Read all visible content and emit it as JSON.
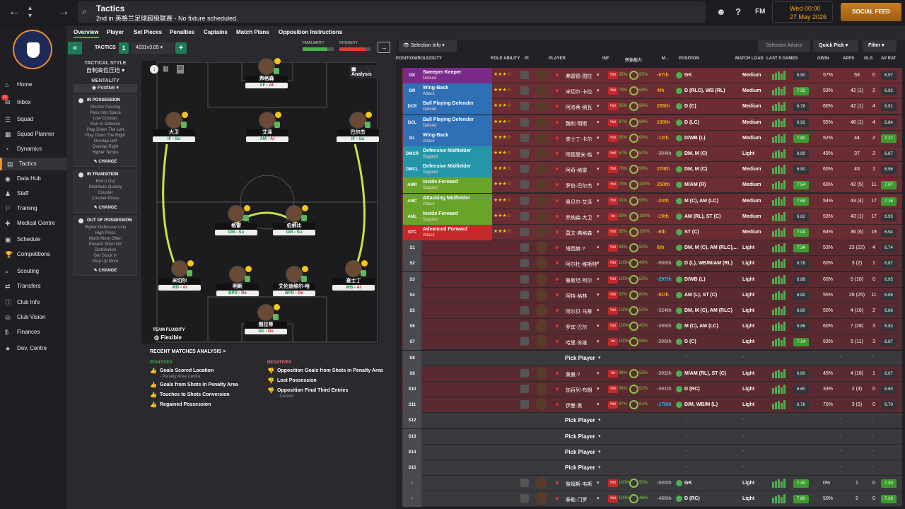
{
  "topbar": {
    "title": "Tactics",
    "subtitle": "2nd in 英格兰足球超级联赛 - No fixture scheduled.",
    "fm_label": "FM",
    "date_line1": "Wed 00:00",
    "date_line2": "27 May 2026",
    "social_feed": "SOCIAL FEED"
  },
  "sidebar": {
    "items": [
      {
        "label": "Home",
        "icon": "⌂"
      },
      {
        "label": "Inbox",
        "icon": "✉"
      },
      {
        "label": "Squad",
        "icon": "☰"
      },
      {
        "label": "Squad Planner",
        "icon": "▦"
      },
      {
        "label": "Dynamics",
        "icon": "◔"
      },
      {
        "label": "Tactics",
        "icon": "▤"
      },
      {
        "label": "Data Hub",
        "icon": "◉"
      },
      {
        "label": "Staff",
        "icon": "♟"
      },
      {
        "label": "Training",
        "icon": "⚐"
      },
      {
        "label": "Medical Centre",
        "icon": "✚"
      },
      {
        "label": "Schedule",
        "icon": "▣"
      },
      {
        "label": "Competitions",
        "icon": "🏆"
      },
      {
        "label": "Scouting",
        "icon": "⌕"
      },
      {
        "label": "Transfers",
        "icon": "⇄"
      },
      {
        "label": "Club Info",
        "icon": "ⓘ"
      },
      {
        "label": "Club Vision",
        "icon": "◎"
      },
      {
        "label": "Finances",
        "icon": "$"
      },
      {
        "label": "Dev. Centre",
        "icon": "★"
      }
    ],
    "inbox_badge": "10"
  },
  "tabs": [
    "Overview",
    "Player",
    "Set Pieces",
    "Penalties",
    "Captains",
    "Match Plans",
    "Opposition Instructions"
  ],
  "tactic": {
    "label": "TACTICS",
    "slot": "1",
    "name": "4231v3.05",
    "familiarity": "FAMILIARITY",
    "intensity": "INTENSITY",
    "style_label": "TACTICAL STYLE",
    "style_value": "自制高位压迫",
    "mentality_label": "MENTALITY",
    "mentality_value": "Positive",
    "analysis": "Analysis",
    "fluidity_label": "TEAM FLUIDITY",
    "fluidity_value": "Flexible"
  },
  "in_possession": {
    "title": "IN POSSESSION",
    "items": [
      "Shorter Passing",
      "Pass Into Space",
      "Low Crosses",
      "Run At Defence",
      "Play Down The Left",
      "Play Down The Right",
      "Overlap Left",
      "Overlap Right",
      "Higher Tempo"
    ],
    "change": "CHANGE"
  },
  "in_transition": {
    "title": "IN TRANSITION",
    "items": [
      "Roll It Out",
      "Distribute Quickly",
      "Counter",
      "Counter-Press"
    ],
    "change": "CHANGE"
  },
  "out_possession": {
    "title": "OUT OF POSSESSION",
    "items": [
      "Higher Defensive Line",
      "High Press",
      "Much More Often",
      "Prevent Short GK",
      "Distribution",
      "Get Stuck In",
      "Step Up More"
    ],
    "change": "CHANGE"
  },
  "pitch_players": [
    {
      "name": "弗格森",
      "role": "AF",
      "duty": "At"
    },
    {
      "name": "大卫",
      "role": "IF",
      "duty": "Su"
    },
    {
      "name": "艾泽",
      "role": "AM",
      "duty": "At"
    },
    {
      "name": "巴尔杰",
      "role": "IF",
      "duty": "Su"
    },
    {
      "name": "格雷",
      "role": "DM",
      "duty": "Su"
    },
    {
      "name": "伯纳比",
      "role": "DM",
      "duty": "Su"
    },
    {
      "name": "米切尔",
      "role": "WB",
      "duty": "At"
    },
    {
      "name": "明斯",
      "role": "BPD",
      "duty": "De"
    },
    {
      "name": "艾伦迪维尔-哈",
      "role": "BPD",
      "duty": "De"
    },
    {
      "name": "查士丁",
      "role": "WB",
      "duty": "At"
    },
    {
      "name": "图拉蒂",
      "role": "SK",
      "duty": "De"
    }
  ],
  "recent": {
    "title": "RECENT MATCHES ANALYSIS >",
    "positives_label": "POSITIVES",
    "positives": [
      {
        "text": "Goals Scored Location",
        "sub": "- Penalty Area Centre"
      },
      {
        "text": "Goals from Shots in Penalty Area",
        "sub": ""
      },
      {
        "text": "Touches to Shots Conversion",
        "sub": ""
      },
      {
        "text": "Regained Possession",
        "sub": ""
      }
    ],
    "negatives_label": "NEGATIVES",
    "negatives": [
      {
        "text": "Opposition Goals from Shots in Penalty Area",
        "sub": ""
      },
      {
        "text": "Lost Possession",
        "sub": ""
      },
      {
        "text": "Opposition Final Third Entries",
        "sub": "- Central"
      }
    ]
  },
  "right": {
    "selection_info": "Selection Info",
    "selection_advice": "Selection Advice",
    "quick_pick": "Quick Pick",
    "filter": "Filter",
    "columns": [
      "POSITION/ROLE/DUTY",
      "ROLE ABILITY",
      "PI",
      "PLAYER",
      "INF",
      "转体能力",
      "M...",
      "POSITION",
      "MATCH LOAD",
      "LAST 5 GAMES",
      "GWIN",
      "APPS",
      "GLS",
      "AV RAT"
    ],
    "pick_player": "Pick Player",
    "rows": [
      {
        "pos": "GK",
        "role": "Sweeper Keeper",
        "duty": "Defend",
        "color": "#7a2b8a",
        "name": "弗雷德·图拉",
        "inf": "Hol",
        "c1": "95%",
        "c2": "95%",
        "val": "-67th",
        "vcol": "#f5a623",
        "position": "GK",
        "load": "Medium",
        "rat": "6.90",
        "gwin": "57%",
        "apps": "53",
        "gls": "0",
        "av": "6.97",
        "avg": false,
        "kind": "sel"
      },
      {
        "pos": "DR",
        "role": "Wing-Back",
        "duty": "Attack",
        "color": "#2e6fb5",
        "name": "米切尔·卡拉",
        "inf": "Hol",
        "c1": "79%",
        "c2": "99%",
        "val": "4th",
        "vcol": "#f5a623",
        "position": "D (RLC), WB (RL)",
        "load": "Medium",
        "rat": "7.32",
        "gwin": "53%",
        "apps": "42 (1)",
        "gls": "2",
        "av": "6.92",
        "avg": false,
        "kind": "sel"
      },
      {
        "pos": "DCR",
        "role": "Ball Playing Defender",
        "duty": "Defend",
        "color": "#2e6fb5",
        "name": "阿洛蒂·纳瓦",
        "inf": "Hol",
        "c1": "85%",
        "c2": "99%",
        "val": "285th",
        "vcol": "#f5a623",
        "position": "D (C)",
        "load": "Medium",
        "rat": "6.78",
        "gwin": "60%",
        "apps": "42 (1)",
        "gls": "4",
        "av": "6.91",
        "avg": false,
        "kind": "sel"
      },
      {
        "pos": "DCL",
        "role": "Ball Playing Defender",
        "duty": "Defend",
        "color": "#2e6fb5",
        "name": "魏利·明斯",
        "inf": "Hol",
        "c1": "87%",
        "c2": "99%",
        "val": "190th",
        "vcol": "#f5a623",
        "position": "D (LC)",
        "load": "Medium",
        "rat": "6.92",
        "gwin": "55%",
        "apps": "46 (1)",
        "gls": "4",
        "av": "6.84",
        "avg": false,
        "kind": "sel"
      },
      {
        "pos": "DL",
        "role": "Wing-Back",
        "duty": "Attack",
        "color": "#2e6fb5",
        "name": "查士丁·卡尔",
        "inf": "Hol",
        "c1": "85%",
        "c2": "99%",
        "val": "-12th",
        "vcol": "#f5a623",
        "position": "D/WB (L)",
        "load": "Medium",
        "rat": "7.80",
        "gwin": "52%",
        "apps": "44",
        "gls": "2",
        "av": "7.17",
        "avg": true,
        "kind": "sel"
      },
      {
        "pos": "DMCR",
        "role": "Defensive Midfielder",
        "duty": "Support",
        "color": "#2596a8",
        "name": "阿德里安·格",
        "inf": "Hol",
        "c1": "67%",
        "c2": "81%",
        "val": "-304th",
        "vcol": "#aaa",
        "position": "DM, M (C)",
        "load": "Light",
        "rat": "6.90",
        "gwin": "49%",
        "apps": "37",
        "gls": "2",
        "av": "6.87",
        "avg": false,
        "kind": "sel"
      },
      {
        "pos": "DMCL",
        "role": "Defensive Midfielder",
        "duty": "Support",
        "color": "#2596a8",
        "name": "阿奇·格雷",
        "inf": "Hol",
        "c1": "78%",
        "c2": "99%",
        "val": "274th",
        "vcol": "#f5a623",
        "position": "DM, M (C)",
        "load": "Medium",
        "rat": "6.90",
        "gwin": "60%",
        "apps": "43",
        "gls": "1",
        "av": "6.96",
        "avg": false,
        "kind": "sel"
      },
      {
        "pos": "AMR",
        "role": "Inside Forward",
        "duty": "Support",
        "color": "#6aa32a",
        "name": "罗伯·巴尔杰",
        "inf": "Hol",
        "c1": "73%",
        "c2": "100%",
        "val": "250th",
        "vcol": "#f5a623",
        "position": "M/AM (R)",
        "load": "Medium",
        "rat": "7.54",
        "gwin": "60%",
        "apps": "42 (5)",
        "gls": "11",
        "av": "7.07",
        "avg": true,
        "kind": "sel"
      },
      {
        "pos": "AMC",
        "role": "Attacking Midfielder",
        "duty": "Attack",
        "color": "#6aa32a",
        "name": "奥贝尔·艾泽",
        "inf": "Hol",
        "c1": "91%",
        "c2": "99%",
        "val": "-24th",
        "vcol": "#f5a623",
        "position": "M (C), AM (LC)",
        "load": "Medium",
        "rat": "7.68",
        "gwin": "54%",
        "apps": "43 (4)",
        "gls": "17",
        "av": "7.16",
        "avg": true,
        "kind": "sel"
      },
      {
        "pos": "AML",
        "role": "Inside Forward",
        "duty": "Support",
        "color": "#6aa32a",
        "name": "乔纳森·大卫",
        "inf": "Int",
        "c1": "83%",
        "c2": "100%",
        "val": "-19th",
        "vcol": "#f5a623",
        "position": "AM (RL), ST (C)",
        "load": "Medium",
        "rat": "6.82",
        "gwin": "53%",
        "apps": "43 (1)",
        "gls": "17",
        "av": "6.93",
        "avg": false,
        "kind": "sel"
      },
      {
        "pos": "STC",
        "role": "Advanced Forward",
        "duty": "Attack",
        "color": "#c62828",
        "name": "莫文·弗格森",
        "inf": "Hol",
        "c1": "85%",
        "c2": "100%",
        "val": "-6th",
        "vcol": "#f5a623",
        "position": "ST (C)",
        "load": "Medium",
        "rat": "7.04",
        "gwin": "64%",
        "apps": "36 (6)",
        "gls": "19",
        "av": "6.94",
        "avg": false,
        "kind": "sel"
      },
      {
        "pos": "S1",
        "name": "塔西赫·?",
        "inf": "Hol",
        "c1": "83%",
        "c2": "90%",
        "val": "6th",
        "vcol": "#f5a623",
        "position": "DM, M (C), AM (RLC),...",
        "load": "Light",
        "rat": "7.34",
        "gwin": "53%",
        "apps": "23 (22)",
        "gls": "4",
        "av": "6.74",
        "avg": false,
        "kind": "sub"
      },
      {
        "pos": "S2",
        "name": "阿尔杜·维斯特",
        "inf": "Hol",
        "c1": "100%",
        "c2": "48%",
        "val": "-500th",
        "vcol": "#aaa",
        "position": "D (L), WB/M/AM (RL)",
        "load": "Light",
        "rat": "6.78",
        "gwin": "60%",
        "apps": "3 (2)",
        "gls": "1",
        "av": "6.87",
        "avg": false,
        "kind": "sub"
      },
      {
        "pos": "S3",
        "name": "鲁斯坦·阿尔",
        "inf": "Hol",
        "c1": "100%",
        "c2": "55%",
        "val": "-297th",
        "vcol": "#29b6f6",
        "position": "D/WB (L)",
        "load": "Light",
        "rat": "6.88",
        "gwin": "60%",
        "apps": "5 (10)",
        "gls": "0",
        "av": "6.95",
        "avg": false,
        "kind": "sub"
      },
      {
        "pos": "S4",
        "name": "阿特·格林",
        "inf": "Hol",
        "c1": "92%",
        "c2": "80%",
        "val": "-91th",
        "vcol": "#f5a623",
        "position": "AM (L), ST (C)",
        "load": "Light",
        "rat": "6.82",
        "gwin": "55%",
        "apps": "26 (25)",
        "gls": "11",
        "av": "6.86",
        "avg": false,
        "kind": "sub"
      },
      {
        "pos": "S5",
        "name": "阿尔贝·马蒂",
        "inf": "Hol",
        "c1": "100%",
        "c2": "52%",
        "val": "-324th",
        "vcol": "#aaa",
        "position": "DM, M (C), AM (RLC)",
        "load": "Light",
        "rat": "6.80",
        "gwin": "50%",
        "apps": "4 (16)",
        "gls": "2",
        "av": "6.86",
        "avg": false,
        "kind": "sub"
      },
      {
        "pos": "S6",
        "name": "罗宾·巴尔",
        "inf": "Hol",
        "c1": "100%",
        "c2": "45%",
        "val": "-395th",
        "vcol": "#aaa",
        "position": "M (C), AM (LC)",
        "load": "Light",
        "rat": "6.86",
        "gwin": "60%",
        "apps": "7 (28)",
        "gls": "3",
        "av": "6.83",
        "avg": false,
        "kind": "sub"
      },
      {
        "pos": "S7",
        "name": "哈里·苏维",
        "inf": "Int",
        "c1": "100%",
        "c2": "56%",
        "val": "-306th",
        "vcol": "#aaa",
        "position": "D (C)",
        "load": "Light",
        "rat": "7.14",
        "gwin": "53%",
        "apps": "5 (11)",
        "gls": "3",
        "av": "6.87",
        "avg": false,
        "kind": "sub"
      },
      {
        "pos": "S8",
        "name": "",
        "kind": "empty"
      },
      {
        "pos": "S9",
        "name": "黄晨·?",
        "inf": "Int",
        "c1": "98%",
        "c2": "55%",
        "val": "-392th",
        "vcol": "#aaa",
        "position": "M/AM (RL), ST (C)",
        "load": "Light",
        "rat": "6.60",
        "gwin": "45%",
        "apps": "4 (18)",
        "gls": "1",
        "av": "6.67",
        "avg": false,
        "kind": "sub"
      },
      {
        "pos": "S10",
        "name": "加百列·布朗",
        "inf": "Hol",
        "c1": "96%",
        "c2": "52%",
        "val": "-391th",
        "vcol": "#aaa",
        "position": "D (RC)",
        "load": "Light",
        "rat": "6.60",
        "gwin": "33%",
        "apps": "2 (4)",
        "gls": "0",
        "av": "6.60",
        "avg": false,
        "kind": "sub"
      },
      {
        "pos": "S11",
        "name": "伊曼·奥",
        "inf": "Hol",
        "c1": "97%",
        "c2": "61%",
        "val": "-176th",
        "vcol": "#29b6f6",
        "position": "D/M, WB/M (L)",
        "load": "Light",
        "rat": "6.76",
        "gwin": "75%",
        "apps": "3 (5)",
        "gls": "0",
        "av": "6.70",
        "avg": false,
        "kind": "sub"
      },
      {
        "pos": "S12",
        "name": "",
        "kind": "empty"
      },
      {
        "pos": "S13",
        "name": "",
        "kind": "empty"
      },
      {
        "pos": "S14",
        "name": "",
        "kind": "empty"
      },
      {
        "pos": "S15",
        "name": "",
        "kind": "empty"
      },
      {
        "pos": "-",
        "name": "詹姆斯·韦斯",
        "inf": "Hol",
        "c1": "100%",
        "c2": "50%",
        "val": "-500th",
        "vcol": "#aaa",
        "position": "GK",
        "load": "Light",
        "rat": "7.40",
        "gwin": "0%",
        "apps": "1",
        "gls": "0",
        "av": "7.30",
        "avg": true,
        "kind": "res"
      },
      {
        "pos": "-",
        "name": "泰勒·门罗",
        "inf": "Hol",
        "c1": "100%",
        "c2": "46%",
        "val": "-480th",
        "vcol": "#aaa",
        "position": "D (RC)",
        "load": "Light",
        "rat": "7.80",
        "gwin": "50%",
        "apps": "2",
        "gls": "0",
        "av": "7.20",
        "avg": true,
        "kind": "res"
      }
    ]
  }
}
